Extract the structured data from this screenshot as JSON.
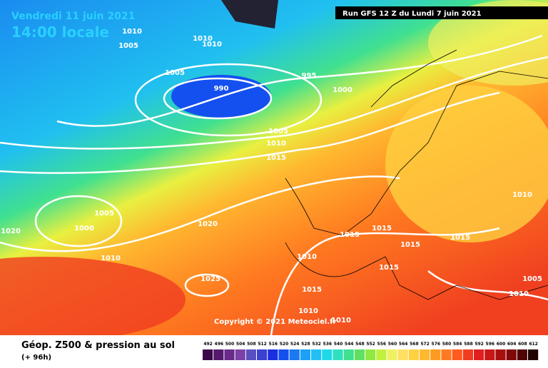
{
  "header": {
    "valid_date": "Vendredi 11 juin 2021",
    "local_time": "14:00 locale",
    "run": "Run GFS 12 Z du Lundi 7 juin 2021"
  },
  "copyright": "Copyright © 2021 Meteociel.fr",
  "isobar_labels": [
    1010,
    1005,
    1010,
    1010,
    1005,
    995,
    990,
    1000,
    1005,
    1010,
    1015,
    1010,
    1005,
    1000,
    1020,
    1020,
    1015,
    1015,
    1015,
    1015,
    1010,
    1010,
    1015,
    1025,
    1005,
    1010,
    1015,
    1010,
    1010
  ],
  "footer": {
    "title": "Géop. Z500 & pression au sol",
    "lead": "(+ 96h)"
  },
  "legend": {
    "values": [
      492,
      496,
      500,
      504,
      508,
      512,
      516,
      520,
      524,
      528,
      532,
      536,
      540,
      544,
      548,
      552,
      556,
      560,
      564,
      568,
      572,
      576,
      580,
      584,
      588,
      592,
      596,
      600,
      604,
      608,
      612
    ],
    "colors": [
      "#3a0a48",
      "#551a6e",
      "#6a2a8a",
      "#7d3fa8",
      "#5a4fc0",
      "#3a40d0",
      "#1a30e0",
      "#1450f0",
      "#1a78f0",
      "#1ea0f5",
      "#20c0f5",
      "#20d8e8",
      "#30e0c0",
      "#40e090",
      "#60e060",
      "#90e840",
      "#c0f040",
      "#f0f060",
      "#ffe060",
      "#ffd040",
      "#ffb830",
      "#ff9a20",
      "#ff7a20",
      "#ff5a20",
      "#f03c20",
      "#e02020",
      "#c81818",
      "#a81010",
      "#800808",
      "#500404",
      "#200000"
    ]
  }
}
